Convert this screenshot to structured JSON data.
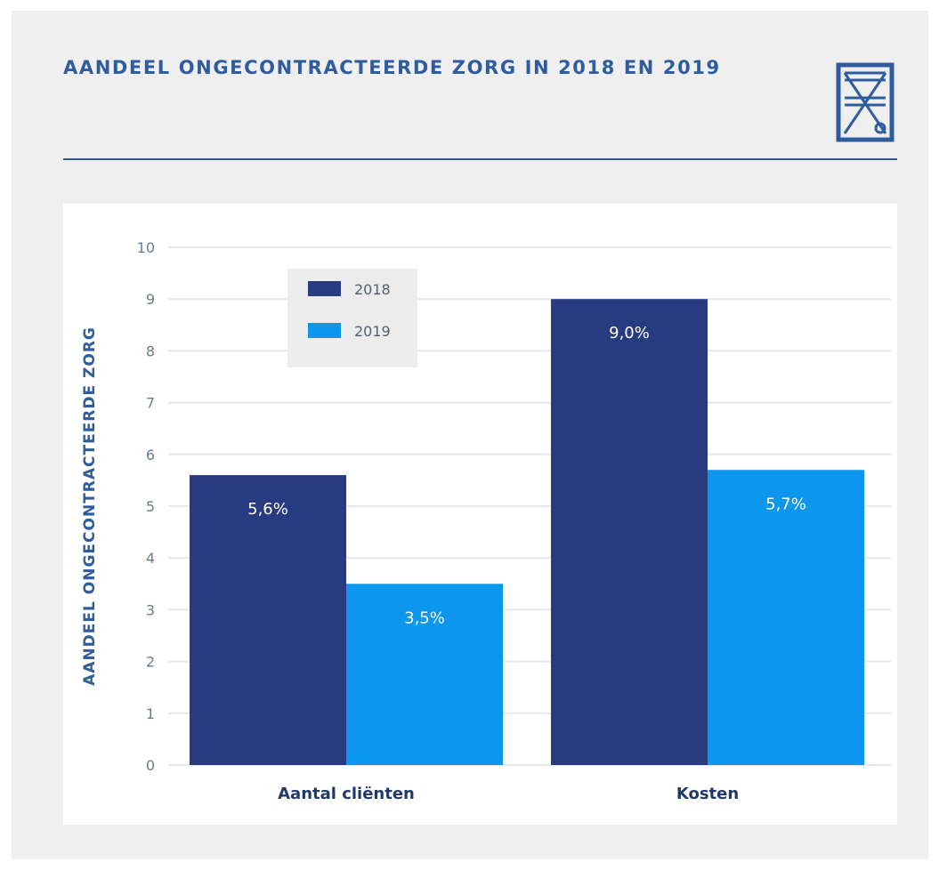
{
  "header": {
    "title": "AANDEEL ONGECONTRACTEERDE ZORG IN 2018 EN 2019"
  },
  "colors": {
    "s2018": "#283a80",
    "s2019": "#0c96ee",
    "accent": "#2e5c9e"
  },
  "chart_data": {
    "type": "bar",
    "title": "AANDEEL ONGECONTRACTEERDE ZORG IN 2018 EN 2019",
    "categories": [
      "Aantal cliënten",
      "Kosten"
    ],
    "series": [
      {
        "name": "2018",
        "values": [
          5.6,
          9.0
        ],
        "labels": [
          "5,6%",
          "9,0%"
        ],
        "color": "#283a80"
      },
      {
        "name": "2019",
        "values": [
          3.5,
          5.7
        ],
        "labels": [
          "3,5%",
          "5,7%"
        ],
        "color": "#0c96ee"
      }
    ],
    "xlabel": "",
    "ylabel": "AANDEEL ONGECONTRACTEERDE ZORG",
    "ylim": [
      0,
      10
    ],
    "yticks": [
      0,
      1,
      2,
      3,
      4,
      5,
      6,
      7,
      8,
      9,
      10
    ],
    "grid": true,
    "legend": "top-left"
  }
}
